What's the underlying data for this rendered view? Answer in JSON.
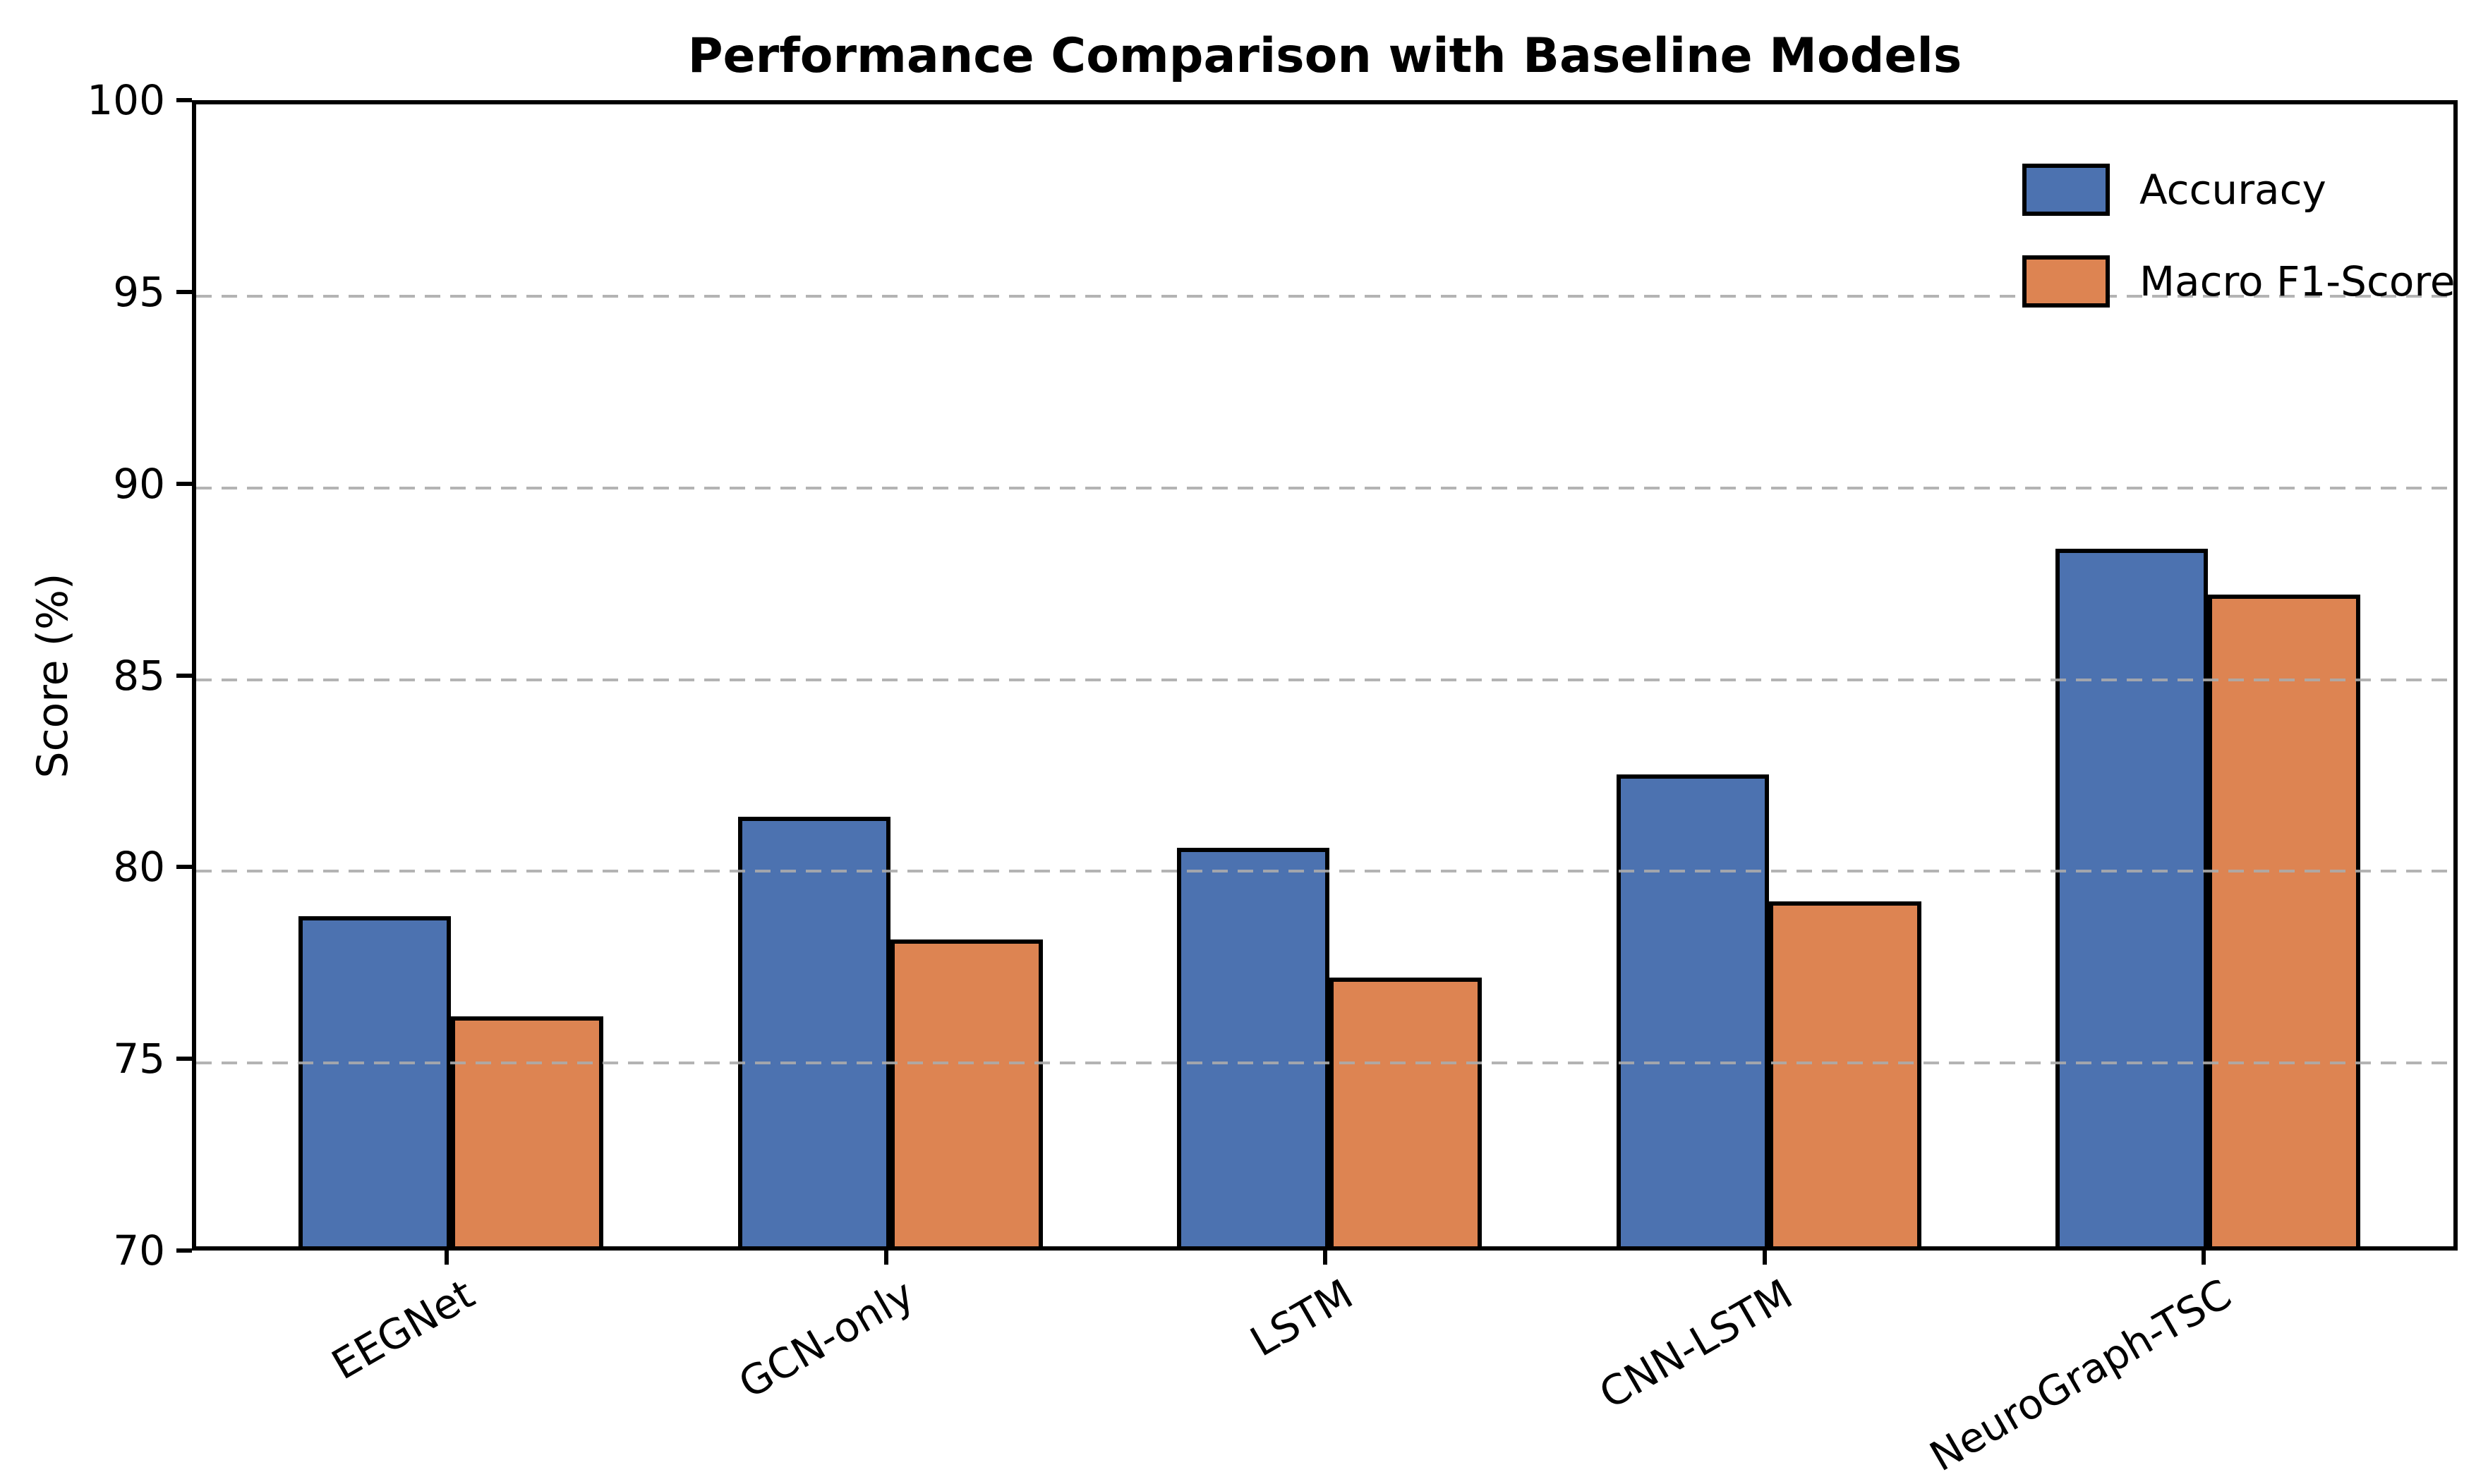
{
  "title": "Performance Comparison with Baseline Models",
  "ylabel": "Score (%)",
  "chart_data": {
    "type": "bar",
    "title": "Performance Comparison with Baseline Models",
    "xlabel": "",
    "ylabel": "Score (%)",
    "categories": [
      "EEGNet",
      "GCN-only",
      "LSTM",
      "CNN-LSTM",
      "NeuroGraph-TSC"
    ],
    "series": [
      {
        "name": "Accuracy",
        "color": "#4C72B0",
        "values": [
          78.6,
          81.2,
          80.4,
          82.3,
          88.2
        ]
      },
      {
        "name": "Macro F1-Score",
        "color": "#DD8452",
        "values": [
          76.0,
          78.0,
          77.0,
          79.0,
          87.0
        ]
      }
    ],
    "ylim": [
      70,
      100
    ],
    "yticks": [
      70,
      75,
      80,
      85,
      90,
      95,
      100
    ],
    "grid": "horizontal dashed gray lines at 75,80,85,90,95 drawn over bars",
    "gridline_color": "#ababab",
    "bar_edge_color": "#000000",
    "legend_position": "upper right",
    "legend_frame": false,
    "xtick_rotation": 30
  }
}
